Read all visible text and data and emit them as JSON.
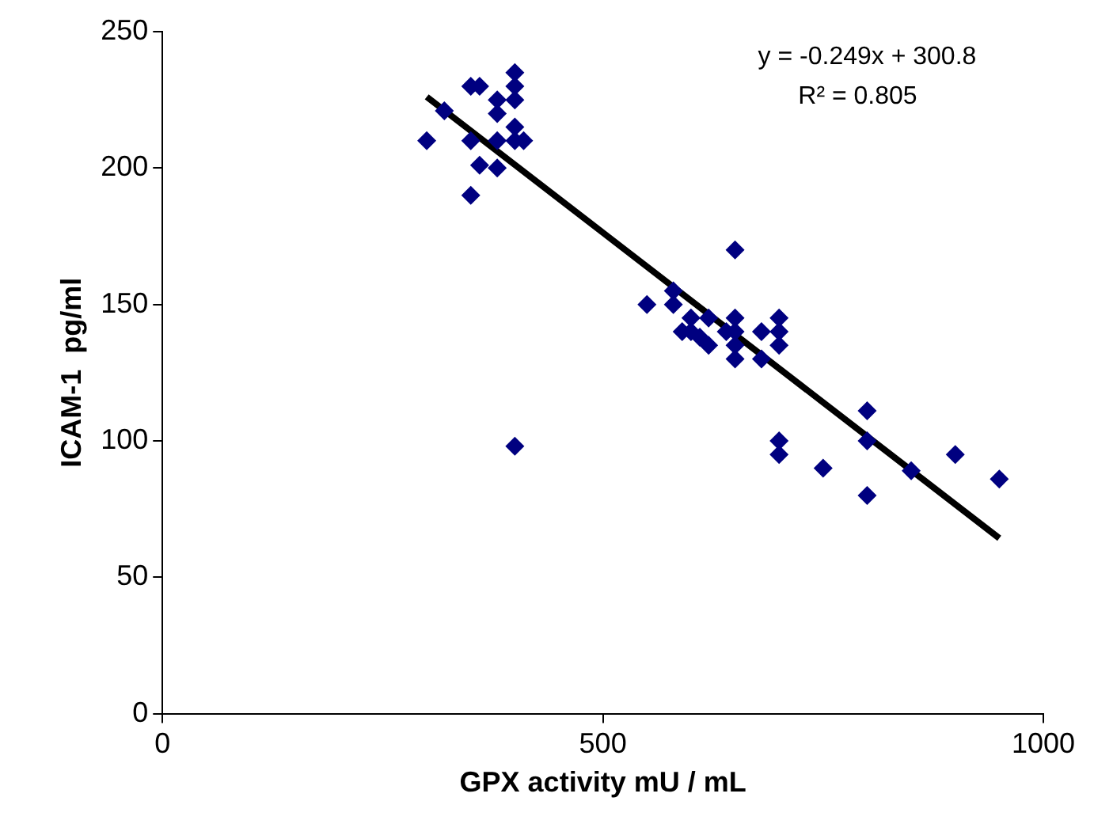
{
  "chart_data": {
    "type": "scatter",
    "xlabel": "GPX activity mU / mL",
    "ylabel": "ICAM-1  pg/ml",
    "xlim": [
      0,
      1000
    ],
    "xticks": [
      0,
      500,
      1000
    ],
    "ylim": [
      0,
      250
    ],
    "yticks": [
      0,
      50,
      100,
      150,
      200,
      250
    ],
    "grid": false,
    "legend": false,
    "marker": "diamond",
    "annotations": [
      "y = -0.249x + 300.8",
      "R² = 0.805"
    ],
    "series": [
      {
        "color": "#000080",
        "x": [
          300,
          320,
          350,
          360,
          350,
          350,
          360,
          380,
          380,
          380,
          380,
          400,
          400,
          400,
          400,
          400,
          410,
          400,
          550,
          580,
          580,
          590,
          600,
          600,
          610,
          620,
          620,
          640,
          650,
          650,
          650,
          650,
          650,
          680,
          680,
          700,
          700,
          700,
          700,
          700,
          750,
          800,
          800,
          800,
          850,
          900,
          950
        ],
        "values": [
          210,
          221,
          230,
          230,
          210,
          190,
          201,
          225,
          220,
          200,
          210,
          235,
          230,
          225,
          215,
          210,
          210,
          98,
          150,
          155,
          150,
          140,
          145,
          140,
          138,
          145,
          135,
          140,
          170,
          145,
          140,
          135,
          130,
          130,
          140,
          145,
          140,
          135,
          100,
          95,
          90,
          111,
          100,
          80,
          89,
          95,
          86
        ]
      },
      {
        "type": "line",
        "color": "#000000",
        "marker": "none",
        "x": [
          300,
          950
        ],
        "values": [
          226.1,
          64.3
        ]
      }
    ]
  }
}
